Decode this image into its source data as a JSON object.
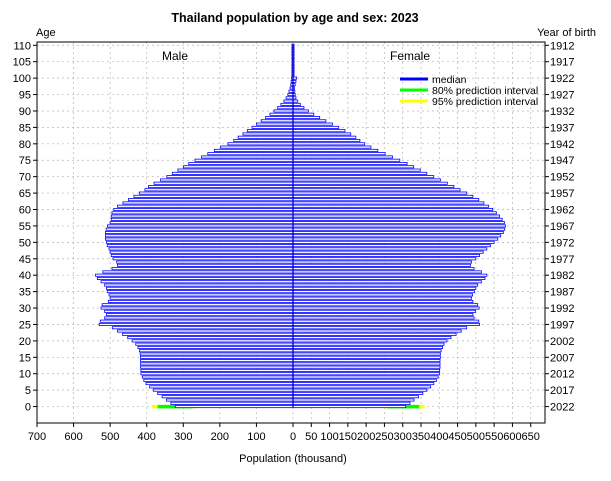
{
  "chart_data": {
    "type": "bar",
    "orientation": "horizontal-pyramid",
    "title": "Thailand population by age and sex: 2023",
    "xlabel": "Population (thousand)",
    "ylabel_left": "Age",
    "ylabel_right": "Year of birth",
    "xlim_male": [
      700,
      0
    ],
    "xlim_female": [
      0,
      650
    ],
    "ylim": [
      -5,
      111
    ],
    "male_label": "Male",
    "female_label": "Female",
    "x_ticks_male": [
      "700",
      "600",
      "500",
      "400",
      "300",
      "200",
      "100"
    ],
    "x_ticks_center": "0",
    "x_ticks_female": [
      "50",
      "100",
      "150",
      "200",
      "250",
      "300",
      "350",
      "400",
      "450",
      "500",
      "550",
      "600",
      "650"
    ],
    "y_ticks_left": [
      "0",
      "5",
      "10",
      "15",
      "20",
      "25",
      "30",
      "35",
      "40",
      "45",
      "50",
      "55",
      "60",
      "65",
      "70",
      "75",
      "80",
      "85",
      "90",
      "95",
      "100",
      "105",
      "110"
    ],
    "y_ticks_right": [
      "2022",
      "2017",
      "2012",
      "2007",
      "2002",
      "1997",
      "1992",
      "1987",
      "1982",
      "1977",
      "1972",
      "1967",
      "1962",
      "1957",
      "1952",
      "1947",
      "1942",
      "1937",
      "1932",
      "1927",
      "1922",
      "1917",
      "1912"
    ],
    "legend": {
      "position": "top-right",
      "entries": [
        {
          "label": "median",
          "color": "#0000ff"
        },
        {
          "label": "80% prediction interval",
          "color": "#00ff00"
        },
        {
          "label": "95% prediction interval",
          "color": "#ffff00"
        }
      ]
    },
    "grid": true,
    "ages": [
      0,
      1,
      2,
      3,
      4,
      5,
      6,
      7,
      8,
      9,
      10,
      11,
      12,
      13,
      14,
      15,
      16,
      17,
      18,
      19,
      20,
      21,
      22,
      23,
      24,
      25,
      26,
      27,
      28,
      29,
      30,
      31,
      32,
      33,
      34,
      35,
      36,
      37,
      38,
      39,
      40,
      41,
      42,
      43,
      44,
      45,
      46,
      47,
      48,
      49,
      50,
      51,
      52,
      53,
      54,
      55,
      56,
      57,
      58,
      59,
      60,
      61,
      62,
      63,
      64,
      65,
      66,
      67,
      68,
      69,
      70,
      71,
      72,
      73,
      74,
      75,
      76,
      77,
      78,
      79,
      80,
      81,
      82,
      83,
      84,
      85,
      86,
      87,
      88,
      89,
      90,
      91,
      92,
      93,
      94,
      95,
      96,
      97,
      98,
      99,
      100,
      101,
      102,
      103,
      104,
      105,
      106,
      107,
      108,
      109,
      110
    ],
    "series": [
      {
        "name": "Male",
        "values": [
          322,
          334,
          346,
          358,
          370,
          382,
          392,
          402,
          408,
          412,
          416,
          416,
          417,
          417,
          417,
          417,
          418,
          420,
          424,
          430,
          440,
          452,
          466,
          480,
          494,
          530,
          527,
          515,
          510,
          515,
          525,
          522,
          505,
          500,
          503,
          508,
          510,
          515,
          525,
          535,
          540,
          520,
          495,
          480,
          482,
          492,
          497,
          500,
          503,
          508,
          510,
          513,
          513,
          513,
          511,
          507,
          500,
          497,
          497,
          495,
          490,
          480,
          465,
          450,
          435,
          420,
          405,
          395,
          380,
          362,
          345,
          330,
          315,
          300,
          285,
          268,
          250,
          233,
          215,
          198,
          178,
          162,
          150,
          137,
          125,
          112,
          100,
          87,
          75,
          63,
          52,
          42,
          33,
          25,
          19,
          14,
          11,
          8,
          6,
          5,
          4,
          3,
          3,
          3,
          3,
          3,
          3,
          3,
          3,
          3,
          3
        ]
      },
      {
        "name": "Female",
        "values": [
          308,
          320,
          331,
          343,
          355,
          366,
          376,
          385,
          392,
          397,
          401,
          401,
          402,
          402,
          402,
          403,
          403,
          405,
          409,
          413,
          421,
          432,
          446,
          460,
          475,
          510,
          508,
          495,
          492,
          499,
          509,
          505,
          492,
          488,
          491,
          496,
          500,
          505,
          515,
          525,
          530,
          515,
          495,
          485,
          488,
          500,
          510,
          520,
          530,
          540,
          550,
          560,
          568,
          575,
          579,
          581,
          578,
          572,
          565,
          556,
          546,
          535,
          522,
          508,
          492,
          475,
          457,
          440,
          422,
          403,
          385,
          366,
          348,
          330,
          312,
          292,
          272,
          252,
          232,
          213,
          196,
          183,
          172,
          158,
          142,
          125,
          108,
          90,
          73,
          57,
          42,
          30,
          20,
          13,
          8,
          6,
          5,
          4,
          6,
          8,
          10,
          3,
          3,
          3,
          3,
          3,
          3,
          3,
          3,
          3,
          3
        ]
      }
    ],
    "prediction_intervals_age0": {
      "male": {
        "pi80": [
          275,
          370
        ],
        "pi95": [
          260,
          385
        ]
      },
      "female": {
        "pi80": [
          260,
          345
        ],
        "pi95": [
          250,
          360
        ]
      }
    }
  }
}
